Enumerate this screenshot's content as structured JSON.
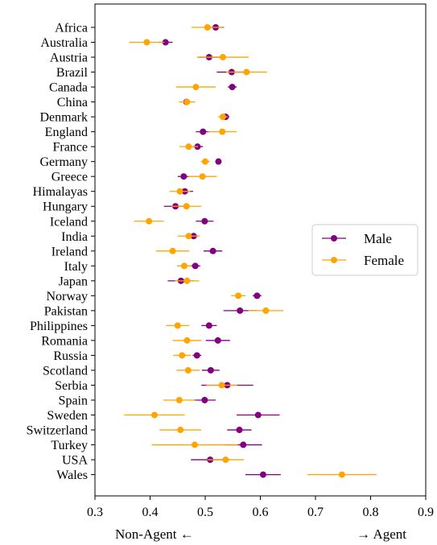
{
  "chart_data": {
    "type": "scatter",
    "orientation": "horizontal",
    "categories": [
      "Africa",
      "Australia",
      "Austria",
      "Brazil",
      "Canada",
      "China",
      "Denmark",
      "England",
      "France",
      "Germany",
      "Greece",
      "Himalayas",
      "Hungary",
      "Iceland",
      "India",
      "Ireland",
      "Italy",
      "Japan",
      "Norway",
      "Pakistan",
      "Philippines",
      "Romania",
      "Russia",
      "Scotland",
      "Serbia",
      "Spain",
      "Sweden",
      "Switzerland",
      "Turkey",
      "USA",
      "Wales"
    ],
    "xlim": [
      0.3,
      0.9
    ],
    "xticks": [
      0.3,
      0.4,
      0.5,
      0.6,
      0.7,
      0.8,
      0.9
    ],
    "xtick_labels": [
      "0.3",
      "0.4",
      "0.5",
      "0.6",
      "0.7",
      "0.8",
      "0.9"
    ],
    "grid": false,
    "legend_position": "center-right",
    "series": [
      {
        "name": "Male",
        "color": "#800080",
        "values": [
          0.519,
          0.428,
          0.507,
          0.548,
          0.549,
          0.466,
          0.537,
          0.496,
          0.486,
          0.524,
          0.461,
          0.463,
          0.446,
          0.499,
          0.479,
          0.514,
          0.482,
          0.456,
          0.594,
          0.563,
          0.507,
          0.523,
          0.485,
          0.51,
          0.54,
          0.499,
          0.596,
          0.562,
          0.569,
          0.509,
          0.605
        ],
        "err_low": [
          0.504,
          0.415,
          0.488,
          0.521,
          0.541,
          0.462,
          0.53,
          0.483,
          0.476,
          0.524,
          0.45,
          0.448,
          0.425,
          0.483,
          0.471,
          0.497,
          0.473,
          0.432,
          0.586,
          0.533,
          0.493,
          0.501,
          0.477,
          0.494,
          0.493,
          0.479,
          0.557,
          0.54,
          0.535,
          0.474,
          0.573
        ],
        "err_high": [
          0.534,
          0.441,
          0.526,
          0.575,
          0.557,
          0.47,
          0.544,
          0.509,
          0.496,
          0.524,
          0.472,
          0.478,
          0.467,
          0.515,
          0.487,
          0.531,
          0.491,
          0.48,
          0.602,
          0.593,
          0.521,
          0.545,
          0.493,
          0.526,
          0.587,
          0.519,
          0.635,
          0.584,
          0.603,
          0.544,
          0.637
        ]
      },
      {
        "name": "Female",
        "color": "#FFA500",
        "values": [
          0.504,
          0.394,
          0.532,
          0.575,
          0.483,
          0.467,
          0.532,
          0.531,
          0.47,
          0.5,
          0.495,
          0.454,
          0.466,
          0.398,
          0.47,
          0.441,
          0.462,
          0.467,
          0.56,
          0.61,
          0.45,
          0.467,
          0.458,
          0.469,
          0.53,
          0.453,
          0.408,
          0.455,
          0.481,
          0.537,
          0.748
        ],
        "err_low": [
          0.475,
          0.362,
          0.485,
          0.538,
          0.447,
          0.452,
          0.523,
          0.505,
          0.453,
          0.492,
          0.469,
          0.435,
          0.439,
          0.371,
          0.45,
          0.411,
          0.449,
          0.445,
          0.547,
          0.578,
          0.429,
          0.441,
          0.442,
          0.448,
          0.502,
          0.424,
          0.353,
          0.417,
          0.403,
          0.504,
          0.685
        ],
        "err_high": [
          0.533,
          0.426,
          0.579,
          0.612,
          0.519,
          0.482,
          0.541,
          0.557,
          0.487,
          0.508,
          0.521,
          0.473,
          0.493,
          0.425,
          0.49,
          0.471,
          0.475,
          0.489,
          0.573,
          0.642,
          0.471,
          0.493,
          0.474,
          0.49,
          0.558,
          0.482,
          0.463,
          0.493,
          0.559,
          0.57,
          0.811
        ]
      }
    ],
    "annotations": {
      "left": "Non-Agent ←",
      "right": "→ Agent"
    }
  }
}
